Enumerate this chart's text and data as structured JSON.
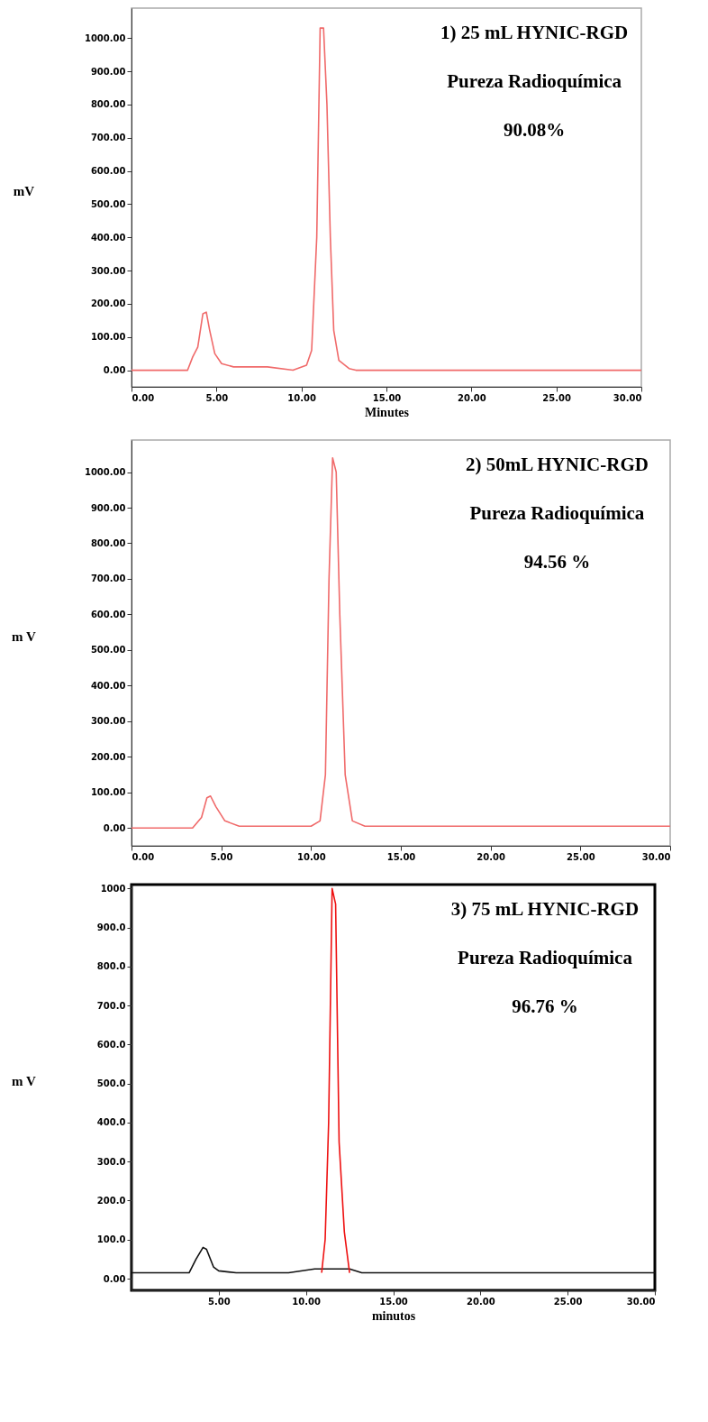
{
  "chart_data": [
    {
      "type": "line",
      "xlabel": "Minutes",
      "ylabel": "mV",
      "xlim": [
        0,
        30
      ],
      "ylim": [
        -50,
        1090
      ],
      "xticks": [
        {
          "value": 0,
          "label": "0.00"
        },
        {
          "value": 5,
          "label": "5.00"
        },
        {
          "value": 10,
          "label": "10.00"
        },
        {
          "value": 15,
          "label": "15.00"
        },
        {
          "value": 20,
          "label": "20.00"
        },
        {
          "value": 25,
          "label": "25.00"
        },
        {
          "value": 30,
          "label": "30.00"
        }
      ],
      "yticks": [
        {
          "value": 0,
          "label": "0.00"
        },
        {
          "value": 100,
          "label": "100.00"
        },
        {
          "value": 200,
          "label": "200.00"
        },
        {
          "value": 300,
          "label": "300.00"
        },
        {
          "value": 400,
          "label": "400.00"
        },
        {
          "value": 500,
          "label": "500.00"
        },
        {
          "value": 600,
          "label": "600.00"
        },
        {
          "value": 700,
          "label": "700.00"
        },
        {
          "value": 800,
          "label": "800.00"
        },
        {
          "value": 900,
          "label": "900.00"
        },
        {
          "value": 1000,
          "label": "1000.00"
        }
      ],
      "series": [
        {
          "color": "#f06a6a",
          "x": [
            0,
            3.3,
            3.6,
            3.9,
            4.2,
            4.4,
            4.6,
            4.9,
            5.3,
            6,
            8,
            9.5,
            10.3,
            10.6,
            10.9,
            11.1,
            11.3,
            11.5,
            11.7,
            11.9,
            12.2,
            12.8,
            13.2,
            30
          ],
          "values": [
            0,
            0,
            40,
            70,
            170,
            175,
            120,
            50,
            20,
            10,
            10,
            0,
            15,
            60,
            400,
            1030,
            1030,
            800,
            400,
            120,
            30,
            5,
            0,
            0
          ]
        }
      ],
      "annotations": [
        "1)  25 mL HYNIC-RGD",
        "Pureza Radioquímica",
        "90.08%"
      ]
    },
    {
      "type": "line",
      "ylabel": "m V",
      "xlim": [
        0,
        30
      ],
      "ylim": [
        -50,
        1090
      ],
      "xticks": [
        {
          "value": 0,
          "label": "0.00"
        },
        {
          "value": 5,
          "label": "5.00"
        },
        {
          "value": 10,
          "label": "10.00"
        },
        {
          "value": 15,
          "label": "15.00"
        },
        {
          "value": 20,
          "label": "20.00"
        },
        {
          "value": 25,
          "label": "25.00"
        },
        {
          "value": 30,
          "label": "30.00"
        }
      ],
      "yticks": [
        {
          "value": 0,
          "label": "0.00"
        },
        {
          "value": 100,
          "label": "100.00"
        },
        {
          "value": 200,
          "label": "200.00"
        },
        {
          "value": 300,
          "label": "300.00"
        },
        {
          "value": 400,
          "label": "400.00"
        },
        {
          "value": 500,
          "label": "500.00"
        },
        {
          "value": 600,
          "label": "600.00"
        },
        {
          "value": 700,
          "label": "700.00"
        },
        {
          "value": 800,
          "label": "800.00"
        },
        {
          "value": 900,
          "label": "900.00"
        },
        {
          "value": 1000,
          "label": "1000.00"
        }
      ],
      "series": [
        {
          "color": "#f06a6a",
          "x": [
            0,
            3.4,
            3.9,
            4.2,
            4.4,
            4.7,
            5.2,
            6,
            10,
            10.5,
            10.8,
            11.0,
            11.2,
            11.4,
            11.6,
            11.9,
            12.3,
            13,
            30
          ],
          "values": [
            0,
            0,
            30,
            85,
            90,
            60,
            20,
            5,
            5,
            20,
            150,
            700,
            1040,
            1000,
            600,
            150,
            20,
            5,
            5
          ]
        }
      ],
      "annotations": [
        "2)  50mL HYNIC-RGD",
        "Pureza Radioquímica",
        "94.56 %"
      ]
    },
    {
      "type": "line",
      "xlabel": "minutos",
      "ylabel": "m V",
      "xlim": [
        0,
        30
      ],
      "ylim": [
        -30,
        1010
      ],
      "xticks": [
        {
          "value": 5,
          "label": "5.00"
        },
        {
          "value": 10,
          "label": "10.00"
        },
        {
          "value": 15,
          "label": "15.00"
        },
        {
          "value": 20,
          "label": "20.00"
        },
        {
          "value": 25,
          "label": "25.00"
        },
        {
          "value": 30,
          "label": "30.00"
        }
      ],
      "yticks": [
        {
          "value": 0,
          "label": "0.00"
        },
        {
          "value": 100,
          "label": "100.0"
        },
        {
          "value": 200,
          "label": "200.0"
        },
        {
          "value": 300,
          "label": "300.0"
        },
        {
          "value": 400,
          "label": "400.0"
        },
        {
          "value": 500,
          "label": "500.0"
        },
        {
          "value": 600,
          "label": "600.0"
        },
        {
          "value": 700,
          "label": "700.0"
        },
        {
          "value": 800,
          "label": "800.0"
        },
        {
          "value": 900,
          "label": "900.0"
        },
        {
          "value": 1000,
          "label": "1000"
        }
      ],
      "series": [
        {
          "color": "#111111",
          "x": [
            0,
            3.3,
            3.7,
            4.1,
            4.3,
            4.7,
            5.0,
            6,
            9,
            10.5,
            11.2,
            12.5,
            13.2,
            30
          ],
          "values": [
            15,
            15,
            50,
            80,
            75,
            30,
            20,
            15,
            15,
            25,
            25,
            25,
            15,
            15
          ]
        },
        {
          "color": "#ee1111",
          "x": [
            10.9,
            11.1,
            11.3,
            11.5,
            11.7,
            11.9,
            12.2,
            12.5
          ],
          "values": [
            15,
            100,
            400,
            1000,
            960,
            350,
            120,
            15
          ]
        }
      ],
      "annotations": [
        "3) 75 mL HYNIC-RGD",
        "Pureza Radioquímica",
        "96.76 %"
      ]
    }
  ]
}
